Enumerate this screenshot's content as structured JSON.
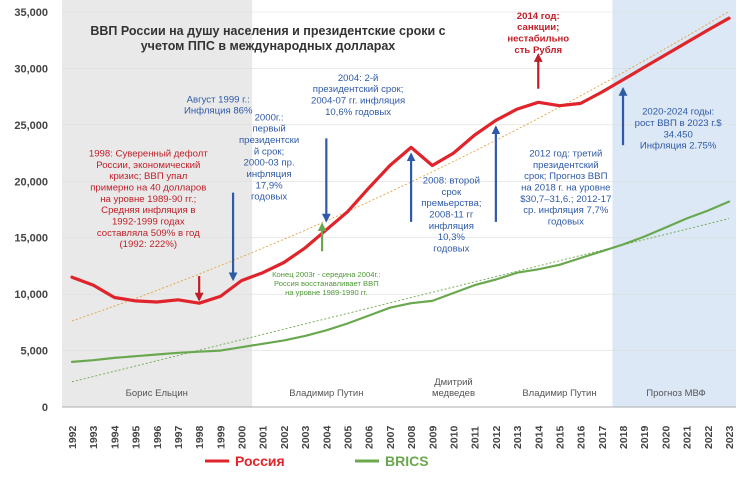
{
  "chart_data": {
    "type": "line",
    "title_lines": [
      "ВВП России на душу населения и президентские сроки с",
      "учетом ППС в международных долларах"
    ],
    "years": [
      1992,
      1993,
      1994,
      1995,
      1996,
      1997,
      1998,
      1999,
      2000,
      2001,
      2002,
      2003,
      2004,
      2005,
      2006,
      2007,
      2008,
      2009,
      2010,
      2011,
      2012,
      2013,
      2014,
      2015,
      2016,
      2017,
      2018,
      2019,
      2020,
      2021,
      2022,
      2023
    ],
    "ylim": [
      0,
      35000
    ],
    "y_ticks": [
      0,
      5000,
      10000,
      15000,
      20000,
      25000,
      30000,
      35000
    ],
    "y_tick_labels": [
      "0",
      "5,000",
      "10,000",
      "15,000",
      "20,000",
      "25,000",
      "30,000",
      "35,000"
    ],
    "series": [
      {
        "name": "Россия",
        "color": "#e0242b",
        "values": [
          11500,
          10800,
          9700,
          9400,
          9300,
          9500,
          9200,
          9800,
          11200,
          11900,
          12800,
          14100,
          15700,
          17300,
          19400,
          21400,
          23000,
          21400,
          22500,
          24100,
          25400,
          26400,
          27000,
          26700,
          26900,
          27900,
          29000,
          30100,
          31200,
          32300,
          33400,
          34450
        ]
      },
      {
        "name": "BRICS",
        "color": "#6aa84f",
        "values": [
          4000,
          4150,
          4350,
          4500,
          4650,
          4800,
          4900,
          5000,
          5300,
          5600,
          5900,
          6300,
          6800,
          7400,
          8100,
          8800,
          9200,
          9400,
          10100,
          10800,
          11300,
          11900,
          12200,
          12600,
          13200,
          13800,
          14400,
          15100,
          15900,
          16700,
          17400,
          18200
        ]
      }
    ],
    "legend": [
      {
        "name": "Россия",
        "color": "#e0242b"
      },
      {
        "name": "BRICS",
        "color": "#6aa84f"
      }
    ],
    "shading": [
      {
        "from": 1992,
        "to": 2000,
        "color": "#e9e9e9"
      },
      {
        "from": 2018,
        "to": 2023,
        "color": "#dce8f5"
      }
    ],
    "period_labels": [
      {
        "year": 1996,
        "lines": [
          "Борис Ельцин"
        ]
      },
      {
        "year": 2004,
        "lines": [
          "Владимир Путин"
        ]
      },
      {
        "year": 2010,
        "lines": [
          "Дмитрий",
          "медведев"
        ]
      },
      {
        "year": 2015,
        "lines": [
          "Владимир Путин"
        ]
      },
      {
        "year": 2020.5,
        "lines": [
          "Прогноз МВФ"
        ]
      }
    ],
    "markers": [
      {
        "year": 1998,
        "type": "down",
        "color": "#c01f28",
        "y_from": 11600,
        "y_to": 9500
      },
      {
        "year": 1999.6,
        "type": "down",
        "color": "#2e5aa7",
        "y_from": 19000,
        "y_to": 11300
      },
      {
        "year": 2004,
        "type": "down",
        "color": "#2e5aa7",
        "y_from": 23800,
        "y_to": 16500
      },
      {
        "year": 2003.8,
        "type": "up",
        "color": "#6aa84f",
        "y_from": 13800,
        "y_to": 16200
      },
      {
        "year": 2008,
        "type": "up",
        "color": "#2e5aa7",
        "y_from": 16400,
        "y_to": 22400
      },
      {
        "year": 2012,
        "type": "up",
        "color": "#2e5aa7",
        "y_from": 16400,
        "y_to": 24800
      },
      {
        "year": 2014,
        "type": "up",
        "color": "#c01f28",
        "y_from": 28200,
        "y_to": 31200
      },
      {
        "year": 2018,
        "type": "up",
        "color": "#2e5aa7",
        "y_from": 23200,
        "y_to": 28200
      }
    ],
    "annotations": [
      {
        "lines": [
          "1998: Суверенный дефолт",
          "России, экономический",
          "кризис; ВВП упал",
          "примерно на 40 долларов",
          "на уровне 1989-90 гг.;",
          "Средняя инфляция в",
          "1992-1999 годах",
          "составляла 509% в год",
          "(1992: 222%)"
        ],
        "year": 1995.6,
        "y": 22200,
        "color": "#c01f28",
        "size": 9.6
      },
      {
        "lines": [
          "Август 1999 г.:",
          "Инфляция 86%"
        ],
        "year": 1998.9,
        "y": 27000,
        "color": "#2e5aa7",
        "size": 9.6
      },
      {
        "lines": [
          "2000г.:",
          "первый",
          "президентски",
          "й срок;",
          "2000-03 пр.",
          "инфляция",
          "17,9%",
          "годовых"
        ],
        "year": 2001.3,
        "y": 25400,
        "color": "#2e5aa7",
        "size": 9.6
      },
      {
        "lines": [
          "2004: 2-й",
          "президентский срок;",
          "2004-07 гг. инфляция",
          "10,6% годовых"
        ],
        "year": 2005.5,
        "y": 28900,
        "color": "#2e5aa7",
        "size": 9.6
      },
      {
        "lines": [
          "Конец 2003г - середина 2004г.:",
          "Россия восстанавливает ВВП",
          "на уровне 1989-1990 гг."
        ],
        "year": 2004,
        "y": 11500,
        "color": "#4e9a36",
        "size": 7.6
      },
      {
        "lines": [
          "2008:  второй",
          "срок",
          "премьерства;",
          "2008-11 гг",
          "инфляция",
          "10,3%",
          "годовых"
        ],
        "year": 2009.9,
        "y": 19800,
        "color": "#2e5aa7",
        "size": 9.6
      },
      {
        "lines": [
          "2012 год: третий",
          "президентский",
          "срок; Прогноз ВВП",
          "на 2018 г. на уровне",
          "$30,7–31,6.; 2012-17",
          "ср. инфляция 7,7%",
          "годовых"
        ],
        "year": 2015.3,
        "y": 22200,
        "color": "#2e5aa7",
        "size": 9.6
      },
      {
        "lines": [
          "2014 год:",
          "санкции;",
          "нестабильно",
          "сть Рубля"
        ],
        "year": 2014,
        "y": 34400,
        "color": "#c01f28",
        "size": 9.6,
        "bold": true
      },
      {
        "lines": [
          "2020-2024 годы:",
          "рост ВВП в 2023 г.$",
          "34.450",
          "Инфляция 2.75%"
        ],
        "year": 2020.6,
        "y": 25900,
        "color": "#2e5aa7",
        "size": 9.6
      }
    ]
  }
}
